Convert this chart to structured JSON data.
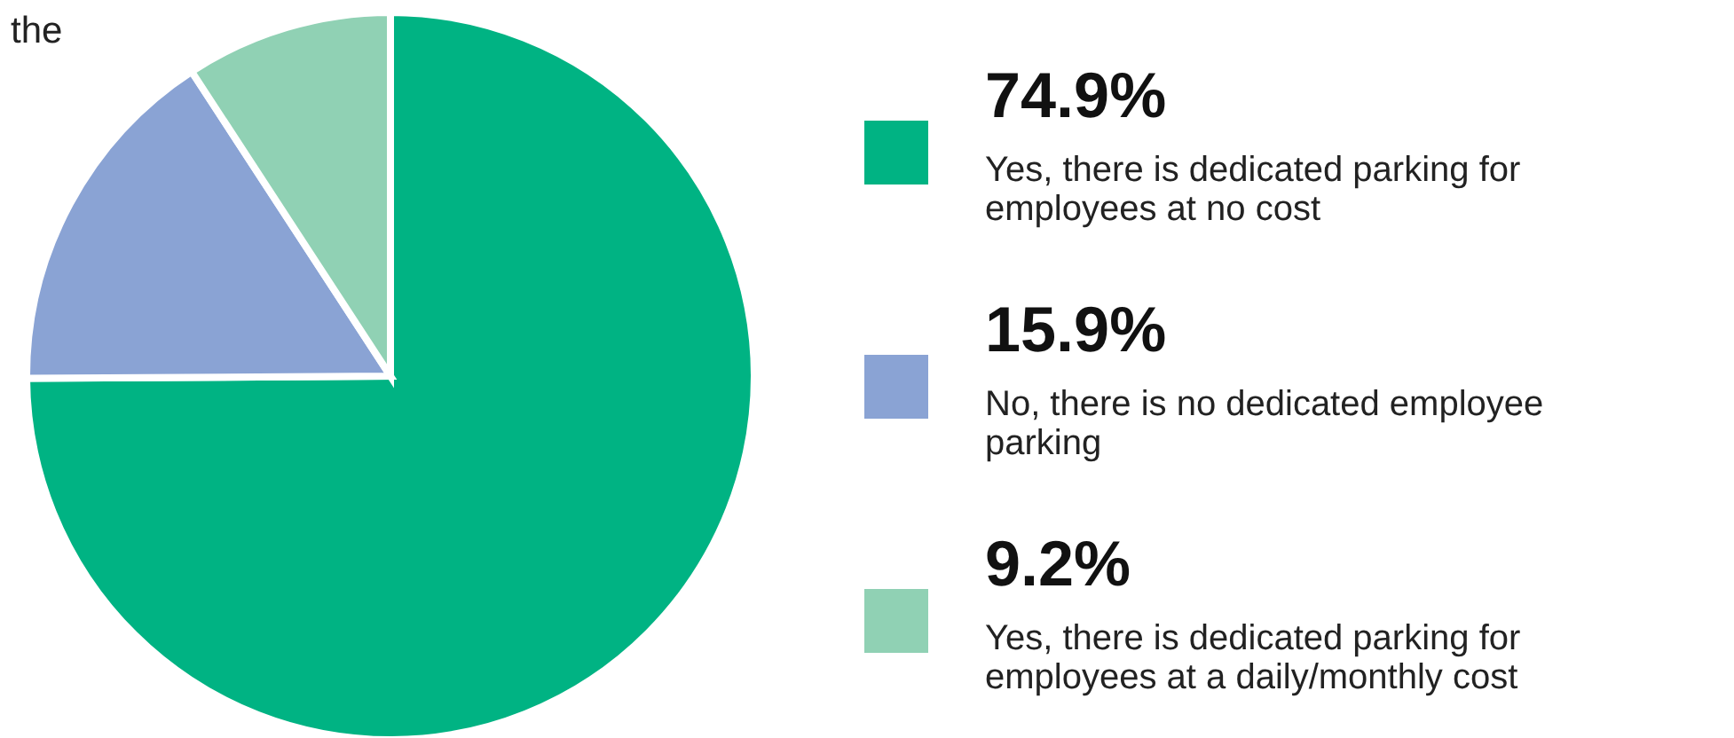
{
  "chart_data": {
    "type": "pie",
    "categories": [
      "Yes, there is dedicated parking for employees at no cost",
      "No, there is no dedicated employee parking",
      "Yes, there is dedicated parking for employees at a daily/monthly cost"
    ],
    "values": [
      74.9,
      15.9,
      9.2
    ],
    "value_labels": [
      "74.9%",
      "15.9%",
      "9.2%"
    ],
    "colors": [
      "#00b383",
      "#8aa3d4",
      "#90d1b4"
    ],
    "annotations": [
      "the"
    ],
    "legend": "right"
  }
}
